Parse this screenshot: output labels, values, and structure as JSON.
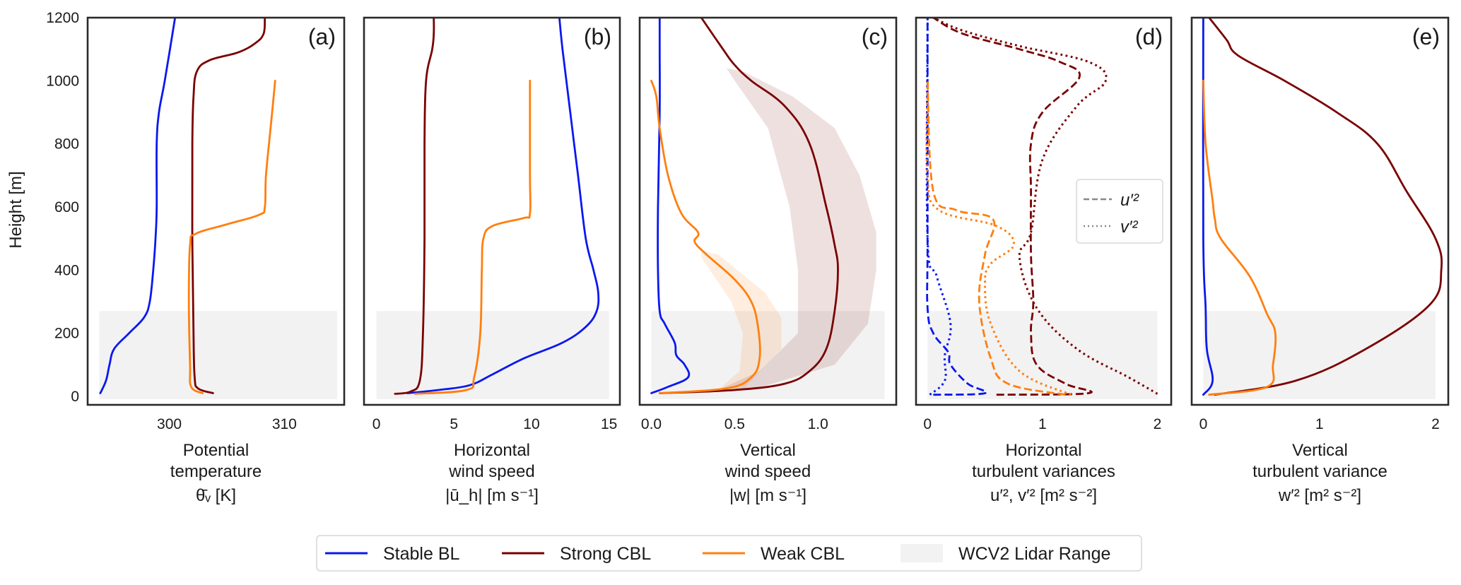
{
  "chart_data": {
    "type": "line",
    "orientation": "vertical-profiles",
    "ylabel": "Height [m]",
    "ylim": [
      -27,
      1200
    ],
    "yticks": [
      0,
      200,
      400,
      600,
      800,
      1000,
      1200
    ],
    "grid": false,
    "legend": {
      "placement": "bottom-center",
      "entries": [
        {
          "key": "stable",
          "label": "Stable BL",
          "color": "#0a18f0",
          "kind": "line"
        },
        {
          "key": "strong",
          "label": "Strong CBL",
          "color": "#7a0000",
          "kind": "line"
        },
        {
          "key": "weak",
          "label": "Weak CBL",
          "color": "#ff7f0e",
          "kind": "line"
        },
        {
          "key": "lidar",
          "label": "WCV2 Lidar Range",
          "color": "#f2f2f2",
          "kind": "patch"
        }
      ]
    },
    "lidar_range": {
      "bottom": 0,
      "top": 270
    },
    "panels": [
      {
        "id": "a",
        "label": "(a)",
        "xlabel_lines": [
          "Potential",
          "temperature"
        ],
        "xlabel_symbol": "θ̄ᵥ [K]",
        "xlim": [
          292.9,
          315.2
        ],
        "xticks": [
          300,
          310
        ],
        "lidar_x": [
          293.9,
          314.6
        ],
        "series": [
          {
            "name": "Stable BL",
            "key": "stable",
            "style": "solid",
            "x": [
              294.0,
              294.5,
              294.8,
              295.2,
              296.5,
              297.8,
              298.3,
              298.6,
              298.8,
              298.9,
              298.9,
              299.1,
              299.6,
              300.5
            ],
            "y": [
              10,
              50,
              100,
              150,
              200,
              250,
              300,
              400,
              500,
              600,
              800,
              900,
              1000,
              1200
            ]
          },
          {
            "name": "Strong CBL",
            "key": "strong",
            "style": "solid",
            "x": [
              303.8,
              302.5,
              302.2,
              302.1,
              302.0,
              302.0,
              302.1,
              302.4,
              303.5,
              306.0,
              307.5,
              308.2,
              308.3
            ],
            "y": [
              10,
              25,
              60,
              200,
              500,
              800,
              950,
              1030,
              1065,
              1090,
              1120,
              1150,
              1200
            ]
          },
          {
            "name": "Weak CBL",
            "key": "weak",
            "style": "solid",
            "x": [
              302.9,
              301.9,
              301.8,
              301.7,
              301.8,
              302.3,
              305.0,
              307.8,
              308.3,
              308.4,
              308.8,
              309.2
            ],
            "y": [
              10,
              30,
              100,
              300,
              480,
              515,
              545,
              575,
              600,
              700,
              850,
              1000
            ]
          }
        ]
      },
      {
        "id": "b",
        "label": "(b)",
        "xlabel_lines": [
          "Horizontal",
          "wind speed"
        ],
        "xlabel_symbol": "|ū_h| [m s⁻¹]",
        "xlim": [
          -0.8,
          15.7
        ],
        "xticks": [
          0,
          5,
          10,
          15
        ],
        "lidar_x": [
          0.0,
          15.0
        ],
        "series": [
          {
            "name": "Stable BL",
            "key": "stable",
            "style": "solid",
            "x": [
              2.0,
              4.0,
              6.0,
              7.5,
              9.5,
              12.0,
              13.5,
              14.2,
              14.3,
              14.0,
              13.5,
              13.0,
              12.5,
              12.0,
              11.8
            ],
            "y": [
              10,
              20,
              35,
              70,
              120,
              170,
              220,
              270,
              330,
              400,
              500,
              700,
              900,
              1100,
              1200
            ]
          },
          {
            "name": "Strong CBL",
            "key": "strong",
            "style": "solid",
            "x": [
              1.2,
              2.2,
              2.8,
              3.0,
              3.1,
              3.1,
              3.2,
              3.6,
              3.7,
              3.7
            ],
            "y": [
              8,
              15,
              50,
              200,
              500,
              800,
              1000,
              1100,
              1150,
              1200
            ]
          },
          {
            "name": "Weak CBL",
            "key": "weak",
            "style": "solid",
            "x": [
              2.5,
              5.8,
              6.3,
              6.7,
              6.8,
              6.9,
              7.5,
              9.5,
              9.9,
              9.9,
              9.9
            ],
            "y": [
              8,
              20,
              60,
              200,
              400,
              500,
              540,
              565,
              580,
              700,
              1000
            ]
          }
        ]
      },
      {
        "id": "c",
        "label": "(c)",
        "xlabel_lines": [
          "Vertical",
          "wind speed"
        ],
        "xlabel_symbol": "|w| [m s⁻¹]",
        "xlim": [
          -0.07,
          1.47
        ],
        "xticks": [
          0.0,
          0.5,
          1.0
        ],
        "xtick_labels": [
          "0.0",
          "0.5",
          "1.0"
        ],
        "lidar_x": [
          0.0,
          1.4
        ],
        "bands": [
          {
            "key": "strong",
            "color": "#7a0000",
            "opacity": 0.12,
            "lower": {
              "x": [
                0.05,
                0.4,
                0.65,
                0.88,
                0.88,
                0.83,
                0.7,
                0.5,
                0.45
              ],
              "y": [
                10,
                20,
                80,
                200,
                400,
                600,
                850,
                1000,
                1040
              ]
            },
            "upper": {
              "x": [
                0.05,
                0.6,
                1.1,
                1.3,
                1.35,
                1.35,
                1.25,
                1.1,
                0.85,
                0.55,
                0.45
              ],
              "y": [
                10,
                20,
                100,
                230,
                400,
                520,
                700,
                850,
                950,
                1030,
                1040
              ]
            }
          },
          {
            "key": "weak",
            "color": "#ff7f0e",
            "opacity": 0.13,
            "lower": {
              "x": [
                0.05,
                0.4,
                0.53,
                0.55,
                0.48,
                0.3
              ],
              "y": [
                10,
                20,
                80,
                200,
                300,
                440
              ]
            },
            "upper": {
              "x": [
                0.05,
                0.55,
                0.78,
                0.78,
                0.68,
                0.4,
                0.3
              ],
              "y": [
                10,
                20,
                150,
                250,
                330,
                450,
                460
              ]
            }
          }
        ],
        "series": [
          {
            "name": "Stable BL",
            "key": "stable",
            "style": "solid",
            "x": [
              0.0,
              0.1,
              0.22,
              0.2,
              0.15,
              0.14,
              0.08,
              0.05,
              0.04,
              0.04,
              0.05,
              0.05,
              0.05
            ],
            "y": [
              10,
              30,
              60,
              100,
              130,
              170,
              230,
              270,
              400,
              600,
              900,
              1100,
              1200
            ]
          },
          {
            "name": "Strong CBL",
            "key": "strong",
            "style": "solid",
            "x": [
              0.05,
              0.5,
              0.8,
              0.95,
              1.05,
              1.1,
              1.12,
              1.1,
              1.05,
              0.95,
              0.8,
              0.6,
              0.5,
              0.43,
              0.3
            ],
            "y": [
              10,
              20,
              40,
              80,
              150,
              270,
              400,
              480,
              600,
              800,
              920,
              1000,
              1050,
              1100,
              1200
            ]
          },
          {
            "name": "Weak CBL",
            "key": "weak",
            "style": "solid",
            "x": [
              0.05,
              0.45,
              0.6,
              0.65,
              0.64,
              0.6,
              0.5,
              0.33,
              0.26,
              0.28,
              0.18,
              0.1,
              0.05,
              0.03,
              0.0
            ],
            "y": [
              10,
              25,
              60,
              120,
              220,
              300,
              370,
              450,
              490,
              520,
              580,
              700,
              850,
              950,
              1000
            ]
          }
        ]
      },
      {
        "id": "d",
        "label": "(d)",
        "xlabel_lines": [
          "Horizontal",
          "turbulent variances"
        ],
        "xlabel_symbol": "u′², v′² [m² s⁻²]",
        "xlim": [
          -0.1,
          2.12
        ],
        "xticks": [
          0,
          1,
          2
        ],
        "lidar_x": [
          0.0,
          2.0
        ],
        "inner_legend": {
          "placement": "center-right",
          "entries": [
            {
              "label": "u′²",
              "style": "dashed",
              "color": "#888888"
            },
            {
              "label": "v′²",
              "style": "dotted",
              "color": "#888888"
            }
          ]
        },
        "series": [
          {
            "name": "Stable BL u'2",
            "key": "stable",
            "style": "dashed",
            "x": [
              0.05,
              0.5,
              0.35,
              0.2,
              0.18,
              0.05,
              0.0,
              0.0,
              0.0
            ],
            "y": [
              5,
              10,
              40,
              100,
              140,
              200,
              280,
              500,
              1200
            ]
          },
          {
            "name": "Stable BL v'2",
            "key": "stable",
            "style": "dotted",
            "x": [
              0.02,
              0.15,
              0.15,
              0.2,
              0.08,
              0.0,
              0.0
            ],
            "y": [
              5,
              50,
              130,
              230,
              380,
              500,
              1200
            ]
          },
          {
            "name": "Strong CBL u'2",
            "key": "strong",
            "style": "dashed",
            "x": [
              0.6,
              1.4,
              1.2,
              0.95,
              0.9,
              0.92,
              0.9,
              0.9,
              0.9,
              1.0,
              1.32,
              1.15,
              0.8,
              0.3,
              0.05
            ],
            "y": [
              5,
              10,
              40,
              100,
              200,
              300,
              450,
              650,
              800,
              900,
              1010,
              1060,
              1100,
              1150,
              1200
            ]
          },
          {
            "name": "Strong CBL v'2",
            "key": "strong",
            "style": "dotted",
            "x": [
              2.0,
              1.75,
              1.3,
              0.95,
              0.8,
              0.9,
              1.0,
              1.3,
              1.55,
              1.4,
              0.8,
              0.3,
              0.05
            ],
            "y": [
              8,
              60,
              150,
              280,
              440,
              520,
              750,
              920,
              1000,
              1060,
              1110,
              1160,
              1200
            ]
          },
          {
            "name": "Weak CBL u'2",
            "key": "weak",
            "style": "dashed",
            "x": [
              1.2,
              0.7,
              0.55,
              0.45,
              0.5,
              0.57,
              0.25,
              0.05,
              0.0
            ],
            "y": [
              5,
              40,
              120,
              300,
              450,
              560,
              590,
              650,
              1000
            ]
          },
          {
            "name": "Weak CBL v'2",
            "key": "weak",
            "style": "dotted",
            "x": [
              1.25,
              0.8,
              0.55,
              0.5,
              0.55,
              0.75,
              0.6,
              0.1,
              0.0,
              0.0
            ],
            "y": [
              5,
              80,
              230,
              360,
              420,
              480,
              540,
              590,
              700,
              1000
            ]
          }
        ]
      },
      {
        "id": "e",
        "label": "(e)",
        "xlabel_lines": [
          "Vertical",
          "turbulent variance"
        ],
        "xlabel_symbol": "w′² [m² s⁻²]",
        "xlim": [
          -0.1,
          2.11
        ],
        "xticks": [
          0,
          1,
          2
        ],
        "lidar_x": [
          0.0,
          2.0
        ],
        "series": [
          {
            "name": "Stable BL",
            "key": "stable",
            "style": "solid",
            "x": [
              0.0,
              0.08,
              0.03,
              0.02,
              0.0,
              0.0
            ],
            "y": [
              5,
              50,
              150,
              280,
              500,
              1200
            ]
          },
          {
            "name": "Strong CBL",
            "key": "strong",
            "style": "solid",
            "x": [
              0.1,
              0.8,
              1.4,
              1.95,
              2.05,
              2.0,
              1.75,
              1.5,
              1.15,
              0.7,
              0.3,
              0.2,
              0.05
            ],
            "y": [
              5,
              50,
              150,
              290,
              400,
              500,
              650,
              800,
              900,
              1000,
              1080,
              1130,
              1200
            ]
          },
          {
            "name": "Weak CBL",
            "key": "weak",
            "style": "solid",
            "x": [
              0.05,
              0.55,
              0.6,
              0.62,
              0.55,
              0.4,
              0.15,
              0.1,
              0.08,
              0.02,
              0.0
            ],
            "y": [
              5,
              30,
              100,
              200,
              260,
              380,
              500,
              560,
              620,
              800,
              1000
            ]
          }
        ]
      }
    ]
  }
}
